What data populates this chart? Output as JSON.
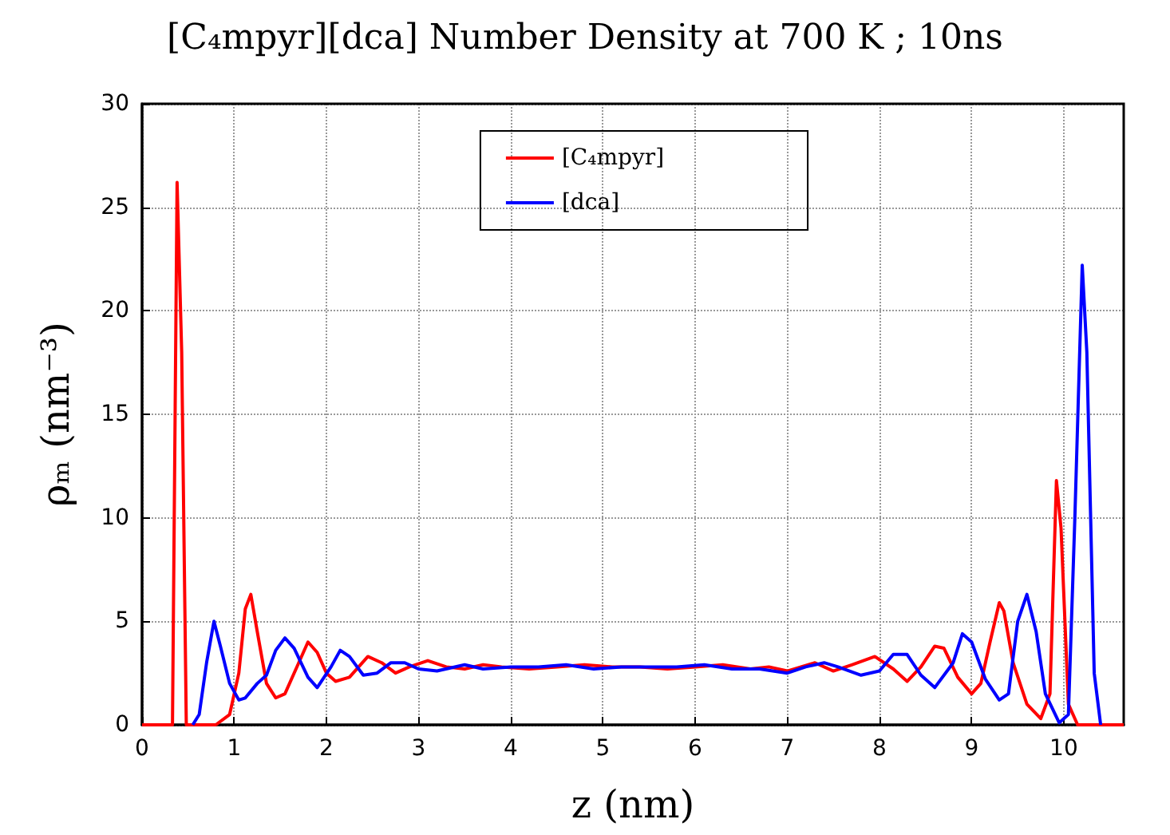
{
  "chart_data": {
    "type": "line",
    "title": "[C₄mpyr][dca] Number Density at 700 K ; 10ns",
    "xlabel": "z (nm)",
    "ylabel": "ρₘ (nm⁻³)",
    "xlim": [
      0,
      10.65
    ],
    "xticks": [
      0,
      1,
      2,
      3,
      4,
      5,
      6,
      7,
      8,
      9,
      10
    ],
    "ylim": [
      0,
      30
    ],
    "yticks": [
      0,
      5,
      10,
      15,
      20,
      25,
      30
    ],
    "grid": true,
    "legend": "top",
    "marker": "none",
    "line_style": "solid",
    "series": [
      {
        "name": "[C₄mpyr]",
        "color": "#ff0000",
        "x": [
          0,
          0.3,
          0.33,
          0.38,
          0.43,
          0.48,
          0.8,
          0.95,
          1.05,
          1.12,
          1.18,
          1.25,
          1.35,
          1.45,
          1.55,
          1.7,
          1.8,
          1.9,
          2.0,
          2.1,
          2.25,
          2.45,
          2.6,
          2.75,
          2.9,
          3.1,
          3.3,
          3.5,
          3.7,
          3.9,
          4.2,
          4.5,
          4.8,
          5.1,
          5.4,
          5.7,
          6.0,
          6.3,
          6.6,
          6.8,
          7.0,
          7.3,
          7.5,
          7.7,
          7.95,
          8.15,
          8.3,
          8.45,
          8.6,
          8.7,
          8.85,
          9.0,
          9.1,
          9.2,
          9.3,
          9.35,
          9.45,
          9.6,
          9.75,
          9.85,
          9.92,
          9.97,
          10.05,
          10.15,
          10.65
        ],
        "values": [
          0,
          0,
          0,
          26.2,
          18,
          0,
          0,
          0.5,
          2.5,
          5.6,
          6.3,
          4.5,
          2,
          1.3,
          1.5,
          3,
          4,
          3.5,
          2.5,
          2.1,
          2.3,
          3.3,
          3.0,
          2.5,
          2.8,
          3.1,
          2.8,
          2.7,
          2.9,
          2.8,
          2.7,
          2.8,
          2.9,
          2.8,
          2.8,
          2.7,
          2.8,
          2.9,
          2.7,
          2.8,
          2.6,
          3.0,
          2.6,
          2.9,
          3.3,
          2.7,
          2.1,
          2.8,
          3.8,
          3.7,
          2.3,
          1.5,
          2,
          4,
          5.9,
          5.5,
          3,
          1,
          0.3,
          1.5,
          11.8,
          9.5,
          1,
          0,
          0
        ]
      },
      {
        "name": "[dca]",
        "color": "#0000ff",
        "x": [
          0.55,
          0.62,
          0.7,
          0.78,
          0.85,
          0.95,
          1.05,
          1.12,
          1.25,
          1.35,
          1.45,
          1.55,
          1.65,
          1.8,
          1.9,
          2.05,
          2.15,
          2.25,
          2.4,
          2.55,
          2.7,
          2.85,
          3.0,
          3.2,
          3.5,
          3.7,
          4.0,
          4.3,
          4.6,
          4.9,
          5.2,
          5.5,
          5.8,
          6.1,
          6.4,
          6.7,
          7.0,
          7.2,
          7.4,
          7.55,
          7.8,
          8.0,
          8.15,
          8.3,
          8.45,
          8.6,
          8.8,
          8.9,
          9.0,
          9.15,
          9.3,
          9.4,
          9.5,
          9.6,
          9.7,
          9.8,
          9.95,
          10.05,
          10.12,
          10.2,
          10.25,
          10.33,
          10.4
        ],
        "values": [
          0,
          0.5,
          3,
          5.0,
          3.8,
          2,
          1.2,
          1.3,
          2.0,
          2.4,
          3.6,
          4.2,
          3.7,
          2.3,
          1.8,
          2.8,
          3.6,
          3.3,
          2.4,
          2.5,
          3.0,
          3.0,
          2.7,
          2.6,
          2.9,
          2.7,
          2.8,
          2.8,
          2.9,
          2.7,
          2.8,
          2.8,
          2.8,
          2.9,
          2.7,
          2.7,
          2.5,
          2.8,
          3.0,
          2.8,
          2.4,
          2.6,
          3.4,
          3.4,
          2.4,
          1.8,
          3.0,
          4.4,
          4.0,
          2.2,
          1.2,
          1.5,
          5,
          6.3,
          4.5,
          1.5,
          0.1,
          0.5,
          10,
          22.2,
          18,
          2.5,
          0
        ]
      }
    ]
  }
}
